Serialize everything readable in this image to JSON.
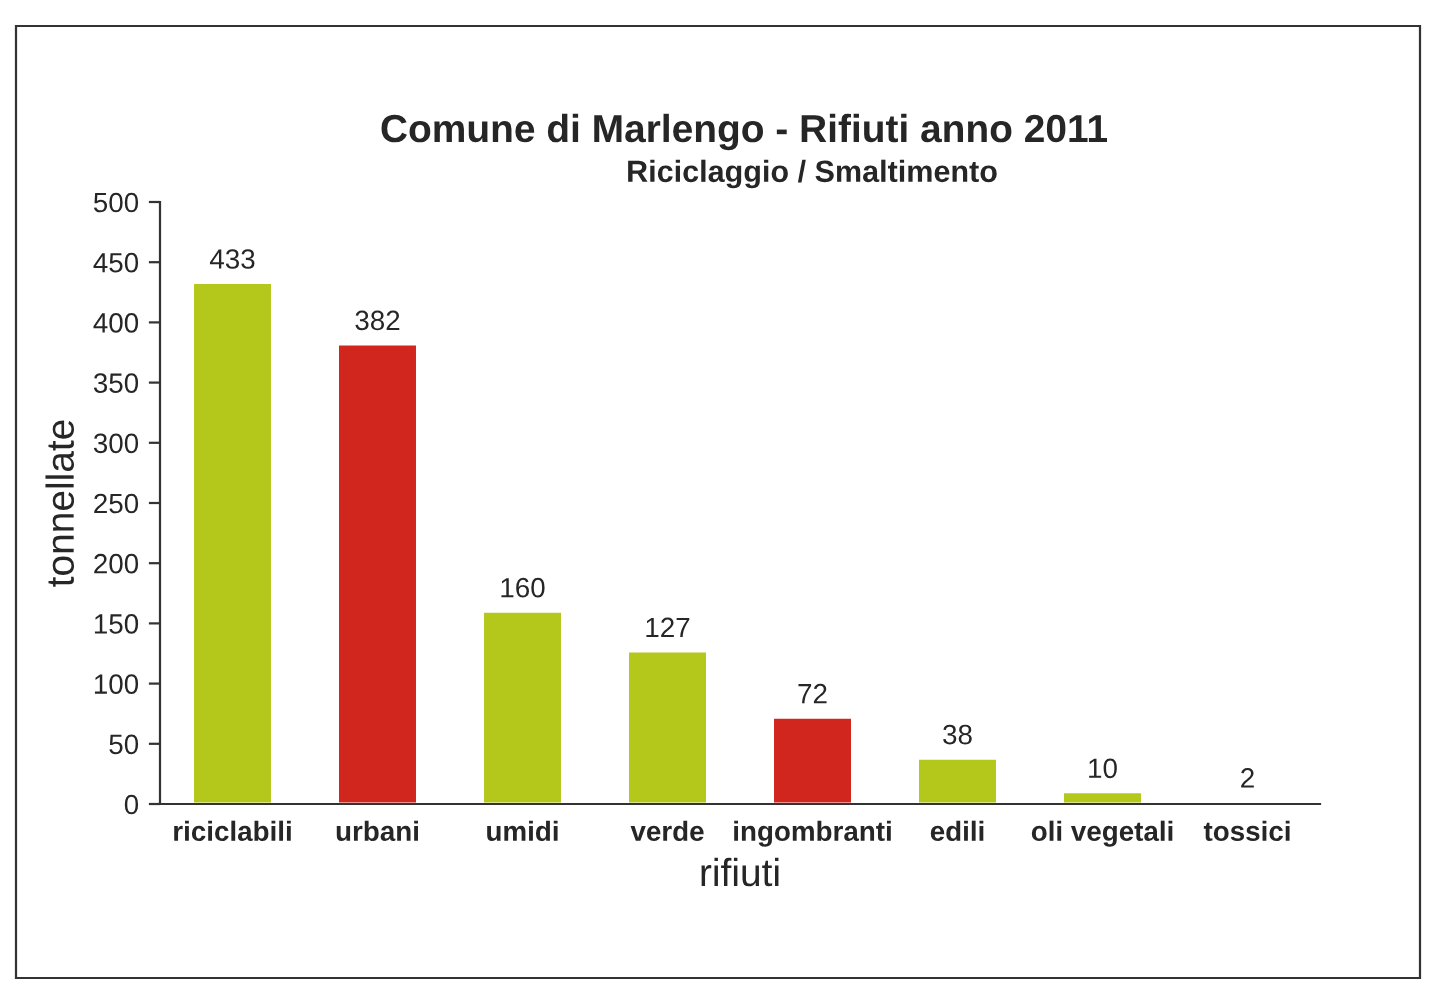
{
  "chart_data": {
    "type": "bar",
    "title": "Comune di Marlengo - Rifiuti anno 2011",
    "subtitle": "Riciclaggio / Smaltimento",
    "xlabel": "rifiuti",
    "ylabel": "tonnellate",
    "categories": [
      "riciclabili",
      "urbani",
      "umidi",
      "verde",
      "ingombranti",
      "edili",
      "oli vegetali",
      "tossici"
    ],
    "values": [
      433,
      382,
      160,
      127,
      72,
      38,
      10,
      2
    ],
    "colors": [
      "#b4c81c",
      "#d0261e",
      "#b4c81c",
      "#b4c81c",
      "#d0261e",
      "#b4c81c",
      "#b4c81c",
      "#eaa585"
    ],
    "ylim": [
      0,
      500
    ],
    "yticks": [
      0,
      50,
      100,
      150,
      200,
      250,
      300,
      350,
      400,
      450,
      500
    ],
    "data_labels": true,
    "grid": false,
    "legend": false
  }
}
